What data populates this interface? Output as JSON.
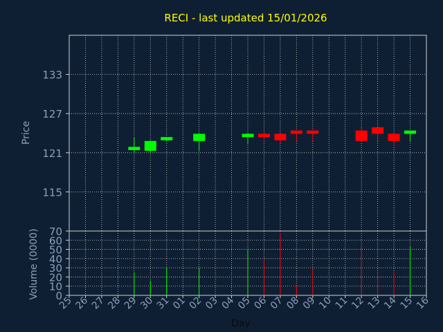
{
  "chart_data": {
    "type": "candlestick",
    "title": "RECI - last updated 15/01/2026",
    "xlabel": "Day",
    "colors": {
      "background": "#0f1f33",
      "axis_text": "#8aa0b8",
      "title": "#ffff00",
      "grid": "#d0d0d0",
      "up": "#00ff00",
      "down": "#ff0000"
    },
    "x_tick_labels": [
      "25",
      "26",
      "27",
      "28",
      "29",
      "30",
      "31",
      "01",
      "02",
      "03",
      "04",
      "05",
      "06",
      "07",
      "08",
      "09",
      "10",
      "11",
      "12",
      "13",
      "14",
      "15",
      "16"
    ],
    "price_panel": {
      "ylabel": "Price",
      "ylim": [
        109,
        139
      ],
      "yticks": [
        115,
        121,
        127,
        133
      ]
    },
    "volume_panel": {
      "ylabel": "Volume (0000)",
      "ylim": [
        0,
        70
      ],
      "yticks": [
        0,
        10,
        20,
        30,
        40,
        50,
        60,
        70
      ]
    },
    "candles": [
      {
        "day": "29",
        "open": 121.4,
        "high": 123.4,
        "low": 121.0,
        "close": 121.9,
        "volume": 25
      },
      {
        "day": "30",
        "open": 121.3,
        "high": 122.9,
        "low": 121.0,
        "close": 122.8,
        "volume": 16
      },
      {
        "day": "31",
        "open": 122.9,
        "high": 123.4,
        "low": 122.8,
        "close": 123.4,
        "volume": 30
      },
      {
        "day": "02",
        "open": 122.8,
        "high": 123.9,
        "low": 121.3,
        "close": 123.9,
        "volume": 30
      },
      {
        "day": "05",
        "open": 123.4,
        "high": 124.0,
        "low": 122.3,
        "close": 123.9,
        "volume": 50
      },
      {
        "day": "06",
        "open": 123.9,
        "high": 123.9,
        "low": 122.9,
        "close": 123.4,
        "volume": 39
      },
      {
        "day": "07",
        "open": 123.9,
        "high": 123.9,
        "low": 122.5,
        "close": 122.9,
        "volume": 68
      },
      {
        "day": "08",
        "open": 124.4,
        "high": 124.4,
        "low": 122.8,
        "close": 123.9,
        "volume": 11
      },
      {
        "day": "09",
        "open": 124.4,
        "high": 124.4,
        "low": 122.8,
        "close": 123.9,
        "volume": 29
      },
      {
        "day": "12",
        "open": 124.4,
        "high": 124.9,
        "low": 122.8,
        "close": 122.8,
        "volume": 51
      },
      {
        "day": "13",
        "open": 124.9,
        "high": 124.9,
        "low": 122.8,
        "close": 123.9,
        "volume": 20
      },
      {
        "day": "14",
        "open": 123.9,
        "high": 123.9,
        "low": 122.0,
        "close": 122.8,
        "volume": 25
      },
      {
        "day": "15",
        "open": 123.9,
        "high": 124.4,
        "low": 122.8,
        "close": 124.4,
        "volume": 53
      }
    ]
  }
}
